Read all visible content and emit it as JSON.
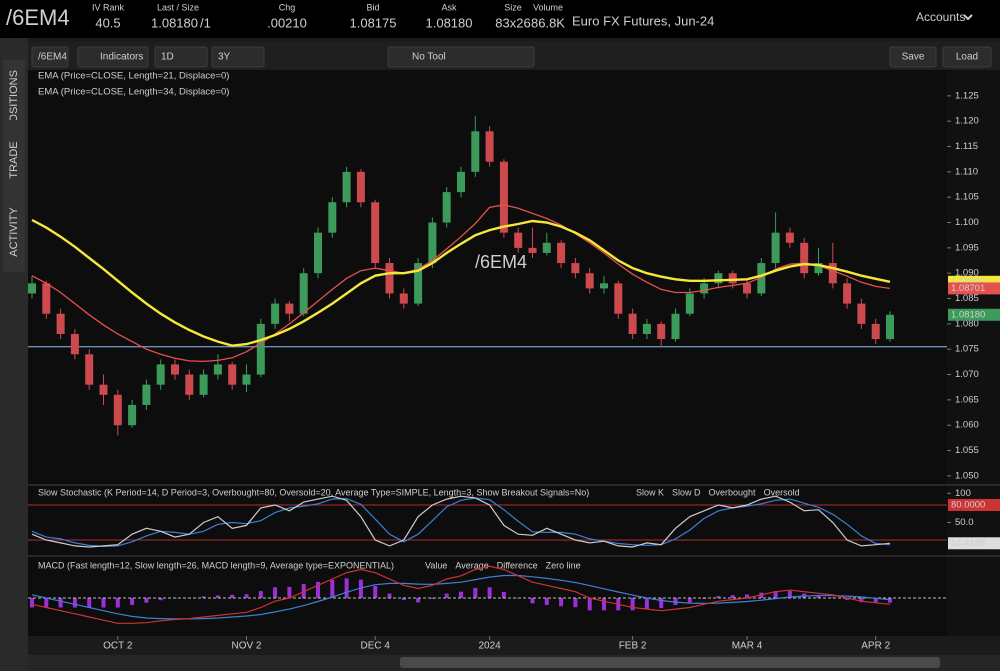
{
  "header": {
    "symbol": "/6EM4",
    "fields": [
      {
        "label": "IV Rank",
        "value": "40.5"
      },
      {
        "label": "Last / Size",
        "value": "1.08180",
        "extra": "/1"
      },
      {
        "label": "Chg",
        "value": ".00210"
      },
      {
        "label": "Bid",
        "value": "1.08175"
      },
      {
        "label": "Ask",
        "value": "1.08180"
      },
      {
        "label": "Size",
        "value": "83x26"
      },
      {
        "label": "Volume",
        "value": "86.8K"
      }
    ],
    "description": "Euro FX Futures, Jun-24",
    "accounts": "Accounts"
  },
  "toolbar": {
    "symbol": "/6EM4",
    "indicators": "Indicators",
    "interval": "1D",
    "range": "3Y",
    "tool": "No Tool",
    "save": "Save",
    "load": "Load"
  },
  "sidebar": {
    "tabs": [
      "POSITIONS",
      "TRADE",
      "ACTIVITY"
    ]
  },
  "price_chart": {
    "watermark": "/6EM4",
    "studies": [
      "EMA (Price=CLOSE, Length=21, Displace=0)",
      "EMA (Price=CLOSE, Length=34, Displace=0)"
    ],
    "ylim": [
      1.0484,
      1.1301
    ],
    "yticks": [
      {
        "value": 1.05,
        "label": "1.050"
      },
      {
        "value": 1.055,
        "label": "1.055"
      },
      {
        "value": 1.06,
        "label": "1.060"
      },
      {
        "value": 1.065,
        "label": "1.065"
      },
      {
        "value": 1.07,
        "label": "1.070"
      },
      {
        "value": 1.075,
        "label": "1.075"
      },
      {
        "value": 1.08,
        "label": "1.080"
      },
      {
        "value": 1.085,
        "label": "1.085"
      },
      {
        "value": 1.09,
        "label": "1.090"
      },
      {
        "value": 1.095,
        "label": "1.095"
      },
      {
        "value": 1.1,
        "label": "1.100"
      },
      {
        "value": 1.105,
        "label": "1.105"
      },
      {
        "value": 1.11,
        "label": "1.110"
      },
      {
        "value": 1.115,
        "label": "1.115"
      },
      {
        "value": 1.12,
        "label": "1.120"
      },
      {
        "value": 1.125,
        "label": "1.125"
      }
    ],
    "xticks": [
      {
        "value": 6,
        "label": "OCT 2"
      },
      {
        "value": 15,
        "label": "NOV 2"
      },
      {
        "value": 24,
        "label": "DEC 4"
      },
      {
        "value": 32,
        "label": "2024"
      },
      {
        "value": 42,
        "label": "FEB 2"
      },
      {
        "value": 50,
        "label": "MAR 4"
      },
      {
        "value": 59,
        "label": "APR 2"
      }
    ],
    "support_line": 1.0755,
    "candles": [
      [
        1.086,
        1.0895,
        1.085,
        1.088
      ],
      [
        1.088,
        1.0885,
        1.081,
        1.082
      ],
      [
        1.082,
        1.083,
        1.077,
        1.078
      ],
      [
        1.078,
        1.079,
        1.073,
        1.074
      ],
      [
        1.074,
        1.075,
        1.067,
        1.068
      ],
      [
        1.068,
        1.07,
        1.064,
        1.066
      ],
      [
        1.066,
        1.067,
        1.058,
        1.06
      ],
      [
        1.06,
        1.065,
        1.0595,
        1.064
      ],
      [
        1.064,
        1.069,
        1.063,
        1.068
      ],
      [
        1.068,
        1.073,
        1.067,
        1.072
      ],
      [
        1.072,
        1.073,
        1.069,
        1.07
      ],
      [
        1.07,
        1.071,
        1.065,
        1.066
      ],
      [
        1.066,
        1.071,
        1.0655,
        1.07
      ],
      [
        1.07,
        1.074,
        1.069,
        1.072
      ],
      [
        1.072,
        1.0725,
        1.067,
        1.068
      ],
      [
        1.068,
        1.072,
        1.0665,
        1.07
      ],
      [
        1.07,
        1.081,
        1.0695,
        1.08
      ],
      [
        1.08,
        1.085,
        1.079,
        1.084
      ],
      [
        1.084,
        1.0845,
        1.0805,
        1.082
      ],
      [
        1.082,
        1.091,
        1.0815,
        1.09
      ],
      [
        1.09,
        1.099,
        1.089,
        1.098
      ],
      [
        1.098,
        1.105,
        1.097,
        1.104
      ],
      [
        1.104,
        1.111,
        1.103,
        1.11
      ],
      [
        1.11,
        1.1105,
        1.103,
        1.104
      ],
      [
        1.104,
        1.1045,
        1.091,
        1.092
      ],
      [
        1.092,
        1.093,
        1.085,
        1.086
      ],
      [
        1.086,
        1.087,
        1.083,
        1.084
      ],
      [
        1.084,
        1.093,
        1.0835,
        1.092
      ],
      [
        1.092,
        1.101,
        1.091,
        1.1
      ],
      [
        1.1,
        1.107,
        1.099,
        1.106
      ],
      [
        1.106,
        1.111,
        1.105,
        1.11
      ],
      [
        1.11,
        1.121,
        1.109,
        1.118
      ],
      [
        1.118,
        1.119,
        1.111,
        1.112
      ],
      [
        1.112,
        1.1125,
        1.097,
        1.098
      ],
      [
        1.098,
        1.099,
        1.094,
        1.095
      ],
      [
        1.095,
        1.099,
        1.093,
        1.094
      ],
      [
        1.094,
        1.098,
        1.0935,
        1.096
      ],
      [
        1.096,
        1.0965,
        1.091,
        1.092
      ],
      [
        1.092,
        1.093,
        1.089,
        1.09
      ],
      [
        1.09,
        1.091,
        1.086,
        1.087
      ],
      [
        1.087,
        1.0895,
        1.086,
        1.088
      ],
      [
        1.088,
        1.0885,
        1.081,
        1.082
      ],
      [
        1.082,
        1.083,
        1.077,
        1.078
      ],
      [
        1.078,
        1.081,
        1.077,
        1.08
      ],
      [
        1.08,
        1.0805,
        1.0755,
        1.077
      ],
      [
        1.077,
        1.083,
        1.0765,
        1.082
      ],
      [
        1.082,
        1.087,
        1.0815,
        1.086
      ],
      [
        1.086,
        1.089,
        1.085,
        1.088
      ],
      [
        1.088,
        1.0905,
        1.087,
        1.09
      ],
      [
        1.09,
        1.0905,
        1.087,
        1.088
      ],
      [
        1.088,
        1.0885,
        1.085,
        1.086
      ],
      [
        1.086,
        1.093,
        1.0855,
        1.092
      ],
      [
        1.092,
        1.102,
        1.091,
        1.098
      ],
      [
        1.098,
        1.099,
        1.095,
        1.096
      ],
      [
        1.096,
        1.097,
        1.089,
        1.09
      ],
      [
        1.09,
        1.095,
        1.0895,
        1.092
      ],
      [
        1.092,
        1.096,
        1.087,
        1.088
      ],
      [
        1.088,
        1.089,
        1.083,
        1.084
      ],
      [
        1.084,
        1.085,
        1.079,
        1.08
      ],
      [
        1.08,
        1.081,
        1.076,
        1.077
      ],
      [
        1.077,
        1.0825,
        1.0765,
        1.0818
      ]
    ],
    "up_color": "#3c9a5a",
    "down_color": "#cc4a4e",
    "ema21": {
      "color": "#e5514f",
      "values": [
        1.0895,
        1.088,
        1.0862,
        1.084,
        1.0818,
        1.0798,
        1.078,
        1.0765,
        1.075,
        1.074,
        1.0732,
        1.0727,
        1.0726,
        1.0728,
        1.0733,
        1.0745,
        1.0762,
        1.078,
        1.08,
        1.0822,
        1.0845,
        1.0868,
        1.089,
        1.0905,
        1.091,
        1.0905,
        1.09,
        1.0908,
        1.0925,
        1.0948,
        1.0972,
        1.0998,
        1.103,
        1.1035,
        1.1028,
        1.1018,
        1.1008,
        1.0995,
        1.0978,
        1.096,
        1.094,
        1.0918,
        1.0898,
        1.0882,
        1.0868,
        1.0862,
        1.0862,
        1.0866,
        1.0872,
        1.0876,
        1.088,
        1.0892,
        1.0908,
        1.0918,
        1.092,
        1.0915,
        1.0905,
        1.0894,
        1.0882,
        1.0874,
        1.087
      ]
    },
    "ema34": {
      "color": "#f5e83a",
      "values": [
        1.1005,
        1.099,
        1.0972,
        1.0952,
        1.093,
        1.0908,
        1.0885,
        1.0862,
        1.084,
        1.082,
        1.0803,
        1.0788,
        1.0775,
        1.0765,
        1.0757,
        1.076,
        1.0768,
        1.0778,
        1.079,
        1.0805,
        1.0822,
        1.084,
        1.086,
        1.088,
        1.0895,
        1.09,
        1.09,
        1.0905,
        1.092,
        1.094,
        1.0958,
        1.0975,
        1.0985,
        1.0992,
        1.0997,
        1.1003,
        1.1,
        1.0992,
        1.098,
        1.0965,
        1.0945,
        1.0925,
        1.091,
        1.09,
        1.0893,
        1.0888,
        1.0885,
        1.0885,
        1.0886,
        1.0887,
        1.0888,
        1.0895,
        1.0905,
        1.0913,
        1.0918,
        1.0916,
        1.091,
        1.0903,
        1.0895,
        1.0889,
        1.0883
      ]
    },
    "price_tags": [
      {
        "value": 1.0883,
        "label": "1.08830",
        "color": "#f5e83a",
        "text_color": "#000000"
      },
      {
        "value": 1.087,
        "label": "1.08701",
        "color": "#e5514f",
        "text_color": "#000000"
      },
      {
        "value": 1.0818,
        "label": "1.08180",
        "color": "#3c9a5a",
        "text_color": "#ffffff"
      }
    ]
  },
  "stochastic": {
    "title": "Slow Stochastic (K Period=14, D Period=3, Overbought=80, Oversold=20, Average Type=SIMPLE, Length=3, Show Breakout Signals=No)",
    "legend": [
      {
        "name": "Slow K",
        "color": "#cccccc"
      },
      {
        "name": "Slow D",
        "color": "#3d7fd6"
      },
      {
        "name": "Overbought",
        "color": "#cc3333"
      },
      {
        "name": "Oversold",
        "color": "#cc3333"
      }
    ],
    "ylim": [
      0,
      100
    ],
    "yticks": [
      100,
      {
        "value": 50,
        "label": "50.0"
      }
    ],
    "levels": [
      80,
      20
    ],
    "k": [
      30,
      20,
      15,
      10,
      8,
      10,
      12,
      30,
      40,
      35,
      25,
      30,
      50,
      60,
      40,
      45,
      75,
      80,
      70,
      85,
      90,
      95,
      88,
      60,
      20,
      10,
      20,
      60,
      80,
      90,
      95,
      92,
      80,
      45,
      30,
      28,
      40,
      30,
      20,
      15,
      18,
      10,
      8,
      15,
      12,
      40,
      60,
      70,
      80,
      75,
      80,
      90,
      95,
      85,
      70,
      72,
      50,
      20,
      10,
      12,
      14.4138
    ],
    "d": [
      35,
      25,
      22,
      15,
      11,
      9,
      10,
      17,
      27,
      35,
      33,
      30,
      35,
      47,
      50,
      48,
      53,
      67,
      75,
      78,
      82,
      90,
      91,
      81,
      56,
      30,
      17,
      30,
      53,
      77,
      88,
      92,
      89,
      72,
      52,
      34,
      33,
      33,
      30,
      22,
      18,
      14,
      12,
      11,
      12,
      22,
      37,
      57,
      70,
      75,
      78,
      82,
      88,
      90,
      83,
      76,
      64,
      47,
      27,
      14,
      12
    ],
    "tags": [
      {
        "value": 80,
        "label": "80.0000",
        "color": "#cc3333"
      },
      {
        "value": 14.4138,
        "label": "14.4138",
        "color": "#dddddd"
      }
    ]
  },
  "macd": {
    "title": "MACD (Fast length=12, Slow length=26, MACD length=9, Average type=EXPONENTIAL)",
    "legend": [
      {
        "name": "Value",
        "color": "#cc3333"
      },
      {
        "name": "Average",
        "color": "#3d7fd6"
      },
      {
        "name": "Difference",
        "color": "#cccccc"
      },
      {
        "name": "Zero line",
        "color": "#cccccc"
      }
    ],
    "ylim": [
      -0.012,
      0.012
    ],
    "hist_color": "#9b30d9",
    "value": [
      -0.002,
      -0.003,
      -0.004,
      -0.005,
      -0.006,
      -0.007,
      -0.008,
      -0.008,
      -0.0078,
      -0.0072,
      -0.0068,
      -0.0065,
      -0.006,
      -0.0055,
      -0.005,
      -0.0045,
      -0.003,
      -0.001,
      0,
      0.002,
      0.004,
      0.006,
      0.008,
      0.009,
      0.008,
      0.006,
      0.004,
      0.003,
      0.004,
      0.006,
      0.007,
      0.009,
      0.01,
      0.009,
      0.007,
      0.005,
      0.004,
      0.003,
      0.002,
      0,
      -0.001,
      -0.002,
      -0.003,
      -0.0035,
      -0.004,
      -0.0035,
      -0.003,
      -0.002,
      -0.001,
      -0.0005,
      0,
      0.001,
      0.002,
      0.0025,
      0.002,
      0.0015,
      0.001,
      0,
      -0.001,
      -0.0015,
      -0.002
    ],
    "average": [
      0.001,
      0,
      -0.001,
      -0.002,
      -0.003,
      -0.004,
      -0.005,
      -0.0058,
      -0.0063,
      -0.0065,
      -0.0066,
      -0.0066,
      -0.0065,
      -0.0063,
      -0.006,
      -0.0057,
      -0.0052,
      -0.0044,
      -0.0035,
      -0.0024,
      -0.0011,
      0.0003,
      0.0018,
      0.0032,
      0.0042,
      0.0046,
      0.0046,
      0.0044,
      0.0043,
      0.0046,
      0.005,
      0.0058,
      0.0066,
      0.0071,
      0.0071,
      0.0067,
      0.0062,
      0.0056,
      0.0049,
      0.0039,
      0.0029,
      0.0019,
      0.0009,
      0,
      -0.0008,
      -0.0013,
      -0.0016,
      -0.0017,
      -0.0016,
      -0.0014,
      -0.0011,
      -0.0007,
      -0.0002,
      0.0003,
      0.0006,
      0.0008,
      0.0008,
      0.0006,
      0.0003,
      -0.0001,
      -0.0005
    ],
    "difference": [
      -0.003,
      -0.003,
      -0.003,
      -0.003,
      -0.003,
      -0.003,
      -0.003,
      -0.0022,
      -0.0015,
      -0.0007,
      -0.0002,
      0.0001,
      0.0005,
      0.0008,
      0.001,
      0.0012,
      0.0022,
      0.0034,
      0.0035,
      0.0044,
      0.0051,
      0.0057,
      0.0062,
      0.0058,
      0.0038,
      0.0014,
      -0.0006,
      -0.0014,
      -0.0003,
      0.0014,
      0.002,
      0.0032,
      0.0034,
      0.0019,
      -0.0001,
      -0.0017,
      -0.0022,
      -0.0026,
      -0.0029,
      -0.0039,
      -0.0039,
      -0.0039,
      -0.0039,
      -0.0035,
      -0.0032,
      -0.0022,
      -0.0014,
      -0.0003,
      0.0006,
      0.0009,
      0.0011,
      0.0017,
      0.0022,
      0.0022,
      0.0014,
      0.0007,
      0.0002,
      -0.0006,
      -0.0013,
      -0.0014,
      -0.0015
    ]
  }
}
